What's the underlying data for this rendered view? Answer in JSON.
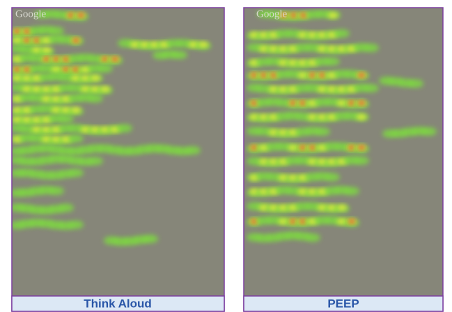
{
  "panels": [
    {
      "logo": "Google",
      "caption": "Think Aloud"
    },
    {
      "logo": "Google",
      "caption": "PEEP"
    }
  ]
}
